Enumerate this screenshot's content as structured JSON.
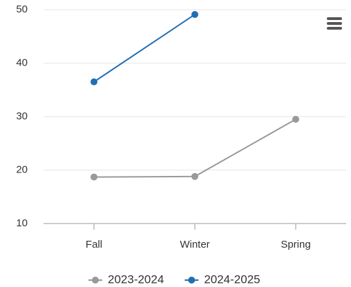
{
  "chart_data": {
    "type": "line",
    "categories": [
      "Fall",
      "Winter",
      "Spring"
    ],
    "series": [
      {
        "name": "2023-2024",
        "color": "#999999",
        "values": [
          18.7,
          18.8,
          29.5
        ]
      },
      {
        "name": "2024-2025",
        "color": "#1f6fb2",
        "values": [
          36.5,
          49.1,
          null
        ]
      }
    ],
    "ylim": [
      10,
      50
    ],
    "yticks": [
      10,
      20,
      30,
      40,
      50
    ],
    "grid": true
  }
}
